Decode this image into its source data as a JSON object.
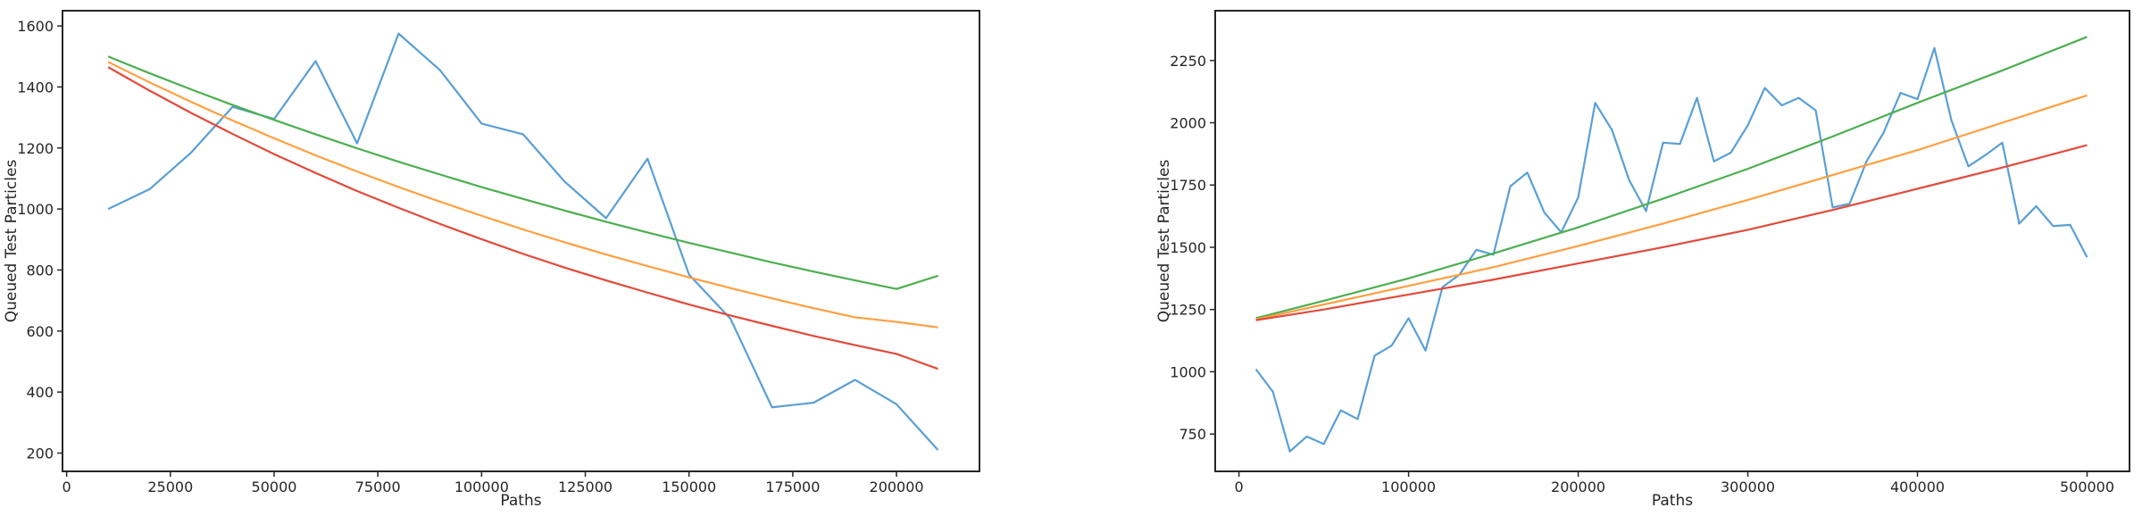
{
  "chart_data": [
    {
      "type": "line",
      "title": "",
      "xlabel": "Paths",
      "ylabel": "Queued Test Particles",
      "xlim": [
        -1000,
        220000
      ],
      "ylim": [
        140,
        1650
      ],
      "xticks": [
        0,
        25000,
        50000,
        75000,
        100000,
        125000,
        150000,
        175000,
        200000
      ],
      "yticks": [
        200,
        400,
        600,
        800,
        1000,
        1200,
        1400,
        1600
      ],
      "grid": false,
      "legend": "none",
      "series": [
        {
          "color": "#5a9fd4",
          "x": [
            10000,
            20000,
            30000,
            40000,
            50000,
            60000,
            70000,
            80000,
            90000,
            100000,
            110000,
            120000,
            130000,
            140000,
            150000,
            160000,
            170000,
            180000,
            190000,
            200000,
            210000
          ],
          "y": [
            1000,
            1065,
            1185,
            1335,
            1295,
            1485,
            1215,
            1575,
            1455,
            1280,
            1245,
            1090,
            970,
            1165,
            785,
            640,
            350,
            365,
            440,
            360,
            210
          ]
        },
        {
          "color": "#4caf50",
          "x": [
            10000,
            20000,
            30000,
            40000,
            50000,
            60000,
            70000,
            80000,
            90000,
            100000,
            110000,
            120000,
            130000,
            140000,
            150000,
            160000,
            170000,
            180000,
            190000,
            200000,
            210000
          ],
          "y": [
            1500,
            1445,
            1392,
            1341,
            1292,
            1245,
            1199,
            1155,
            1113,
            1072,
            1033,
            995,
            958,
            923,
            889,
            857,
            825,
            795,
            766,
            738,
            781
          ]
        },
        {
          "color": "#ff9f40",
          "x": [
            10000,
            20000,
            30000,
            40000,
            50000,
            60000,
            70000,
            80000,
            90000,
            100000,
            110000,
            120000,
            130000,
            140000,
            150000,
            160000,
            170000,
            180000,
            190000,
            200000,
            210000
          ],
          "y": [
            1482,
            1415,
            1351,
            1290,
            1232,
            1176,
            1123,
            1072,
            1024,
            978,
            933,
            891,
            851,
            813,
            776,
            741,
            707,
            675,
            645,
            630,
            612
          ]
        },
        {
          "color": "#e24a3b",
          "x": [
            10000,
            20000,
            30000,
            40000,
            50000,
            60000,
            70000,
            80000,
            90000,
            100000,
            110000,
            120000,
            130000,
            140000,
            150000,
            160000,
            170000,
            180000,
            190000,
            200000,
            210000
          ],
          "y": [
            1465,
            1388,
            1315,
            1246,
            1180,
            1118,
            1059,
            1004,
            951,
            901,
            853,
            808,
            766,
            726,
            687,
            651,
            617,
            584,
            554,
            525,
            476
          ]
        }
      ]
    },
    {
      "type": "line",
      "title": "",
      "xlabel": "Paths",
      "ylabel": "Queued Test Particles",
      "xlim": [
        -14000,
        525000
      ],
      "ylim": [
        600,
        2450
      ],
      "xticks": [
        0,
        100000,
        200000,
        300000,
        400000,
        500000
      ],
      "yticks": [
        750,
        1000,
        1250,
        1500,
        1750,
        2000,
        2250
      ],
      "grid": false,
      "legend": "none",
      "series": [
        {
          "color": "#5a9fd4",
          "x": [
            10000,
            20000,
            30000,
            40000,
            50000,
            60000,
            70000,
            80000,
            90000,
            100000,
            110000,
            120000,
            130000,
            140000,
            150000,
            160000,
            170000,
            180000,
            190000,
            200000,
            210000,
            220000,
            230000,
            240000,
            250000,
            260000,
            270000,
            280000,
            290000,
            300000,
            310000,
            320000,
            330000,
            340000,
            350000,
            360000,
            370000,
            380000,
            390000,
            400000,
            410000,
            420000,
            430000,
            440000,
            450000,
            460000,
            470000,
            480000,
            490000,
            500000
          ],
          "y": [
            1010,
            920,
            680,
            740,
            710,
            845,
            810,
            1065,
            1105,
            1215,
            1085,
            1340,
            1390,
            1490,
            1470,
            1745,
            1800,
            1640,
            1560,
            1700,
            2080,
            1970,
            1770,
            1645,
            1920,
            1915,
            2100,
            1845,
            1880,
            1990,
            2140,
            2070,
            2100,
            2050,
            1660,
            1675,
            1845,
            1960,
            2120,
            2095,
            2300,
            2010,
            1825,
            1870,
            1920,
            1595,
            1665,
            1585,
            1590,
            1460
          ]
        },
        {
          "color": "#4caf50",
          "x": [
            10000,
            50000,
            100000,
            150000,
            200000,
            250000,
            300000,
            350000,
            400000,
            450000,
            500000
          ],
          "y": [
            1215,
            1285,
            1375,
            1475,
            1580,
            1695,
            1815,
            1945,
            2080,
            2210,
            2345
          ]
        },
        {
          "color": "#ff9f40",
          "x": [
            10000,
            50000,
            100000,
            150000,
            200000,
            250000,
            300000,
            350000,
            400000,
            450000,
            500000
          ],
          "y": [
            1210,
            1270,
            1345,
            1420,
            1505,
            1595,
            1690,
            1790,
            1890,
            2000,
            2110
          ]
        },
        {
          "color": "#e24a3b",
          "x": [
            10000,
            50000,
            100000,
            150000,
            200000,
            250000,
            300000,
            350000,
            400000,
            450000,
            500000
          ],
          "y": [
            1207,
            1250,
            1310,
            1370,
            1435,
            1500,
            1570,
            1650,
            1735,
            1820,
            1910
          ]
        }
      ]
    }
  ]
}
